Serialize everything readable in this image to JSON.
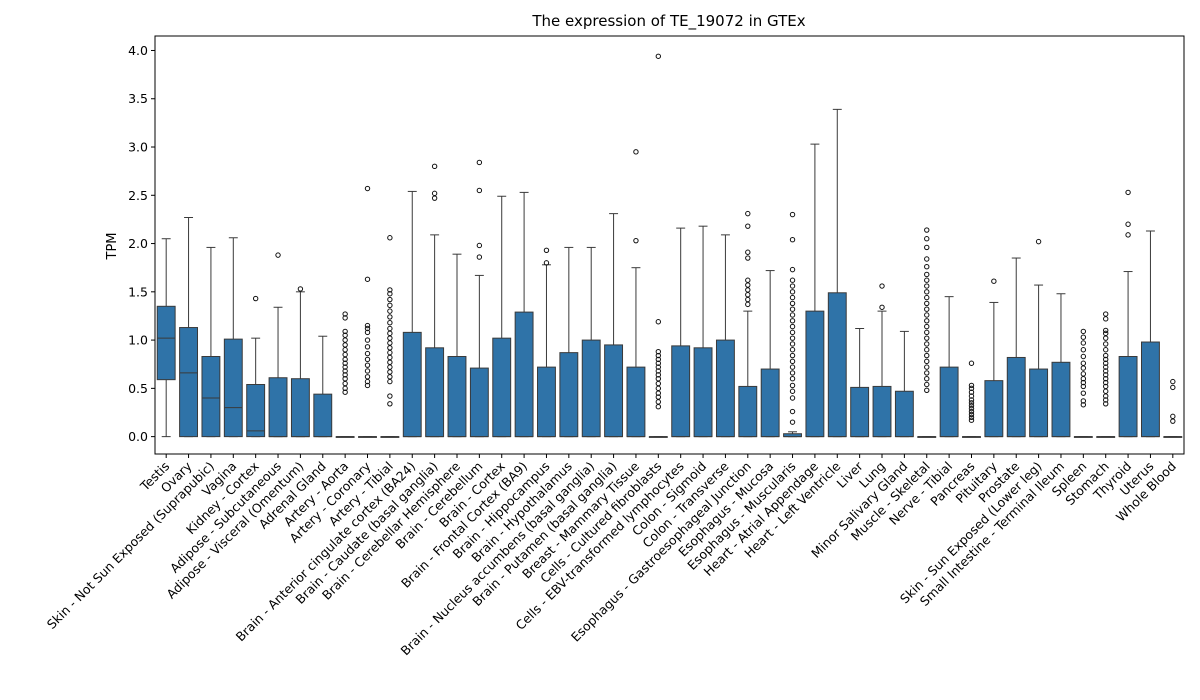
{
  "chart_data": {
    "type": "box",
    "title": "The expression of TE_19072 in GTEx",
    "xlabel": "",
    "ylabel": "TPM",
    "ylim": [
      -0.18,
      4.15
    ],
    "yticks": [
      "0.0",
      "0.5",
      "1.0",
      "1.5",
      "2.0",
      "2.5",
      "3.0",
      "3.5",
      "4.0"
    ],
    "grid": false,
    "legend": "none",
    "box_color": "#2f73a8",
    "edge_color": "#3a3a3a",
    "categories": [
      "Testis",
      "Ovary",
      "Skin - Not Sun Exposed (Suprapubic)",
      "Vagina",
      "Kidney - Cortex",
      "Adipose - Subcutaneous",
      "Adipose - Visceral (Omentum)",
      "Adrenal Gland",
      "Artery - Aorta",
      "Artery - Coronary",
      "Artery - Tibial",
      "Brain - Anterior cingulate cortex (BA24)",
      "Brain - Caudate (basal ganglia)",
      "Brain - Cerebellar Hemisphere",
      "Brain - Cerebellum",
      "Brain - Cortex",
      "Brain - Frontal Cortex (BA9)",
      "Brain - Hippocampus",
      "Brain - Hypothalamus",
      "Brain - Nucleus accumbens (basal ganglia)",
      "Brain - Putamen (basal ganglia)",
      "Breast - Mammary Tissue",
      "Cells - Cultured fibroblasts",
      "Cells - EBV-transformed lymphocytes",
      "Colon - Sigmoid",
      "Colon - Transverse",
      "Esophagus - Gastroesophageal Junction",
      "Esophagus - Mucosa",
      "Esophagus - Muscularis",
      "Heart - Atrial Appendage",
      "Heart - Left Ventricle",
      "Liver",
      "Lung",
      "Minor Salivary Gland",
      "Muscle - Skeletal",
      "Nerve - Tibial",
      "Pancreas",
      "Pituitary",
      "Prostate",
      "Skin - Sun Exposed (Lower leg)",
      "Small Intestine - Terminal Ileum",
      "Spleen",
      "Stomach",
      "Thyroid",
      "Uterus",
      "Whole Blood"
    ],
    "boxes": [
      {
        "q1": 0.59,
        "median": 1.02,
        "q3": 1.35,
        "whisker_low": 0.0,
        "whisker_high": 2.05,
        "outliers": []
      },
      {
        "q1": 0.0,
        "median": 0.66,
        "q3": 1.13,
        "whisker_low": 0.0,
        "whisker_high": 2.27,
        "outliers": []
      },
      {
        "q1": 0.0,
        "median": 0.4,
        "q3": 0.83,
        "whisker_low": 0.0,
        "whisker_high": 1.96,
        "outliers": []
      },
      {
        "q1": 0.0,
        "median": 0.3,
        "q3": 1.01,
        "whisker_low": 0.0,
        "whisker_high": 2.06,
        "outliers": []
      },
      {
        "q1": 0.0,
        "median": 0.06,
        "q3": 0.54,
        "whisker_low": 0.0,
        "whisker_high": 1.02,
        "outliers": [
          1.43
        ]
      },
      {
        "q1": 0.0,
        "median": 0.0,
        "q3": 0.61,
        "whisker_low": 0.0,
        "whisker_high": 1.34,
        "outliers": [
          1.88
        ]
      },
      {
        "q1": 0.0,
        "median": 0.0,
        "q3": 0.6,
        "whisker_low": 0.0,
        "whisker_high": 1.5,
        "outliers": [
          1.53
        ]
      },
      {
        "q1": 0.0,
        "median": 0.0,
        "q3": 0.44,
        "whisker_low": 0.0,
        "whisker_high": 1.04,
        "outliers": []
      },
      {
        "q1": 0.0,
        "median": 0.0,
        "q3": 0.0,
        "whisker_low": 0.0,
        "whisker_high": 0.0,
        "outliers": [
          0.46,
          0.5,
          0.55,
          0.6,
          0.64,
          0.68,
          0.72,
          0.76,
          0.8,
          0.85,
          0.9,
          0.95,
          1.0,
          1.05,
          1.09,
          1.23,
          1.27
        ]
      },
      {
        "q1": 0.0,
        "median": 0.0,
        "q3": 0.0,
        "whisker_low": 0.0,
        "whisker_high": 0.0,
        "outliers": [
          0.53,
          0.57,
          0.62,
          0.68,
          0.74,
          0.8,
          0.86,
          0.93,
          1.0,
          1.08,
          1.12,
          1.15,
          1.63,
          2.57
        ]
      },
      {
        "q1": 0.0,
        "median": 0.0,
        "q3": 0.0,
        "whisker_low": 0.0,
        "whisker_high": 0.0,
        "outliers": [
          0.34,
          0.42,
          0.57,
          0.62,
          0.67,
          0.72,
          0.77,
          0.82,
          0.87,
          0.92,
          0.97,
          1.02,
          1.07,
          1.12,
          1.18,
          1.24,
          1.3,
          1.36,
          1.42,
          1.48,
          1.52,
          2.06
        ]
      },
      {
        "q1": 0.0,
        "median": 0.0,
        "q3": 1.08,
        "whisker_low": 0.0,
        "whisker_high": 2.54,
        "outliers": []
      },
      {
        "q1": 0.0,
        "median": 0.0,
        "q3": 0.92,
        "whisker_low": 0.0,
        "whisker_high": 2.09,
        "outliers": [
          2.47,
          2.52,
          2.8
        ]
      },
      {
        "q1": 0.0,
        "median": 0.0,
        "q3": 0.83,
        "whisker_low": 0.0,
        "whisker_high": 1.89,
        "outliers": []
      },
      {
        "q1": 0.0,
        "median": 0.0,
        "q3": 0.71,
        "whisker_low": 0.0,
        "whisker_high": 1.67,
        "outliers": [
          1.86,
          1.98,
          2.55,
          2.84
        ]
      },
      {
        "q1": 0.0,
        "median": 0.0,
        "q3": 1.02,
        "whisker_low": 0.0,
        "whisker_high": 2.49,
        "outliers": []
      },
      {
        "q1": 0.0,
        "median": 0.0,
        "q3": 1.29,
        "whisker_low": 0.0,
        "whisker_high": 2.53,
        "outliers": []
      },
      {
        "q1": 0.0,
        "median": 0.0,
        "q3": 0.72,
        "whisker_low": 0.0,
        "whisker_high": 1.78,
        "outliers": [
          1.8,
          1.93
        ]
      },
      {
        "q1": 0.0,
        "median": 0.0,
        "q3": 0.87,
        "whisker_low": 0.0,
        "whisker_high": 1.96,
        "outliers": []
      },
      {
        "q1": 0.0,
        "median": 0.0,
        "q3": 1.0,
        "whisker_low": 0.0,
        "whisker_high": 1.96,
        "outliers": []
      },
      {
        "q1": 0.0,
        "median": 0.0,
        "q3": 0.95,
        "whisker_low": 0.0,
        "whisker_high": 2.31,
        "outliers": []
      },
      {
        "q1": 0.0,
        "median": 0.0,
        "q3": 0.72,
        "whisker_low": 0.0,
        "whisker_high": 1.75,
        "outliers": [
          2.03,
          2.95
        ]
      },
      {
        "q1": 0.0,
        "median": 0.0,
        "q3": 0.0,
        "whisker_low": 0.0,
        "whisker_high": 0.0,
        "outliers": [
          0.31,
          0.36,
          0.41,
          0.45,
          0.5,
          0.55,
          0.6,
          0.64,
          0.68,
          0.72,
          0.76,
          0.8,
          0.84,
          0.88,
          1.19,
          3.94
        ]
      },
      {
        "q1": 0.0,
        "median": 0.0,
        "q3": 0.94,
        "whisker_low": 0.0,
        "whisker_high": 2.16,
        "outliers": []
      },
      {
        "q1": 0.0,
        "median": 0.0,
        "q3": 0.92,
        "whisker_low": 0.0,
        "whisker_high": 2.18,
        "outliers": []
      },
      {
        "q1": 0.0,
        "median": 0.0,
        "q3": 1.0,
        "whisker_low": 0.0,
        "whisker_high": 2.09,
        "outliers": []
      },
      {
        "q1": 0.0,
        "median": 0.0,
        "q3": 0.52,
        "whisker_low": 0.0,
        "whisker_high": 1.3,
        "outliers": [
          1.37,
          1.42,
          1.47,
          1.52,
          1.57,
          1.62,
          1.85,
          1.91,
          2.18,
          2.31
        ]
      },
      {
        "q1": 0.0,
        "median": 0.0,
        "q3": 0.7,
        "whisker_low": 0.0,
        "whisker_high": 1.72,
        "outliers": []
      },
      {
        "q1": 0.0,
        "median": 0.0,
        "q3": 0.03,
        "whisker_low": 0.0,
        "whisker_high": 0.05,
        "outliers": [
          0.15,
          0.26,
          0.4,
          0.47,
          0.53,
          0.6,
          0.66,
          0.72,
          0.78,
          0.84,
          0.9,
          0.96,
          1.02,
          1.08,
          1.14,
          1.2,
          1.26,
          1.32,
          1.38,
          1.44,
          1.5,
          1.56,
          1.62,
          1.73,
          2.04,
          2.3
        ]
      },
      {
        "q1": 0.0,
        "median": 0.0,
        "q3": 1.3,
        "whisker_low": 0.0,
        "whisker_high": 3.03,
        "outliers": []
      },
      {
        "q1": 0.0,
        "median": 0.0,
        "q3": 1.49,
        "whisker_low": 0.0,
        "whisker_high": 3.39,
        "outliers": []
      },
      {
        "q1": 0.0,
        "median": 0.0,
        "q3": 0.51,
        "whisker_low": 0.0,
        "whisker_high": 1.12,
        "outliers": []
      },
      {
        "q1": 0.0,
        "median": 0.0,
        "q3": 0.52,
        "whisker_low": 0.0,
        "whisker_high": 1.3,
        "outliers": [
          1.34,
          1.56
        ]
      },
      {
        "q1": 0.0,
        "median": 0.0,
        "q3": 0.47,
        "whisker_low": 0.0,
        "whisker_high": 1.09,
        "outliers": []
      },
      {
        "q1": 0.0,
        "median": 0.0,
        "q3": 0.0,
        "whisker_low": 0.0,
        "whisker_high": 0.0,
        "outliers": [
          0.48,
          0.54,
          0.6,
          0.66,
          0.72,
          0.78,
          0.84,
          0.9,
          0.96,
          1.02,
          1.08,
          1.14,
          1.2,
          1.26,
          1.32,
          1.38,
          1.44,
          1.5,
          1.56,
          1.62,
          1.68,
          1.76,
          1.84,
          1.96,
          2.05,
          2.14
        ]
      },
      {
        "q1": 0.0,
        "median": 0.0,
        "q3": 0.72,
        "whisker_low": 0.0,
        "whisker_high": 1.45,
        "outliers": []
      },
      {
        "q1": 0.0,
        "median": 0.0,
        "q3": 0.0,
        "whisker_low": 0.0,
        "whisker_high": 0.0,
        "outliers": [
          0.17,
          0.2,
          0.23,
          0.26,
          0.29,
          0.32,
          0.35,
          0.38,
          0.42,
          0.46,
          0.5,
          0.53,
          0.76
        ]
      },
      {
        "q1": 0.0,
        "median": 0.0,
        "q3": 0.58,
        "whisker_low": 0.0,
        "whisker_high": 1.39,
        "outliers": [
          1.61
        ]
      },
      {
        "q1": 0.0,
        "median": 0.0,
        "q3": 0.82,
        "whisker_low": 0.0,
        "whisker_high": 1.85,
        "outliers": []
      },
      {
        "q1": 0.0,
        "median": 0.0,
        "q3": 0.7,
        "whisker_low": 0.0,
        "whisker_high": 1.57,
        "outliers": [
          2.02
        ]
      },
      {
        "q1": 0.0,
        "median": 0.0,
        "q3": 0.77,
        "whisker_low": 0.0,
        "whisker_high": 1.48,
        "outliers": []
      },
      {
        "q1": 0.0,
        "median": 0.0,
        "q3": 0.0,
        "whisker_low": 0.0,
        "whisker_high": 0.0,
        "outliers": [
          0.33,
          0.37,
          0.45,
          0.52,
          0.56,
          0.6,
          0.65,
          0.71,
          0.76,
          0.83,
          0.9,
          0.97,
          1.03,
          1.09
        ]
      },
      {
        "q1": 0.0,
        "median": 0.0,
        "q3": 0.0,
        "whisker_low": 0.0,
        "whisker_high": 0.0,
        "outliers": [
          0.34,
          0.38,
          0.42,
          0.47,
          0.52,
          0.56,
          0.6,
          0.64,
          0.68,
          0.72,
          0.76,
          0.8,
          0.84,
          0.9,
          0.96,
          1.02,
          1.07,
          1.1,
          1.22,
          1.27
        ]
      },
      {
        "q1": 0.0,
        "median": 0.0,
        "q3": 0.83,
        "whisker_low": 0.0,
        "whisker_high": 1.71,
        "outliers": [
          2.09,
          2.2,
          2.53
        ]
      },
      {
        "q1": 0.0,
        "median": 0.0,
        "q3": 0.98,
        "whisker_low": 0.0,
        "whisker_high": 2.13,
        "outliers": []
      },
      {
        "q1": 0.0,
        "median": 0.0,
        "q3": 0.0,
        "whisker_low": 0.0,
        "whisker_high": 0.0,
        "outliers": [
          0.16,
          0.21,
          0.51,
          0.57
        ]
      }
    ]
  }
}
